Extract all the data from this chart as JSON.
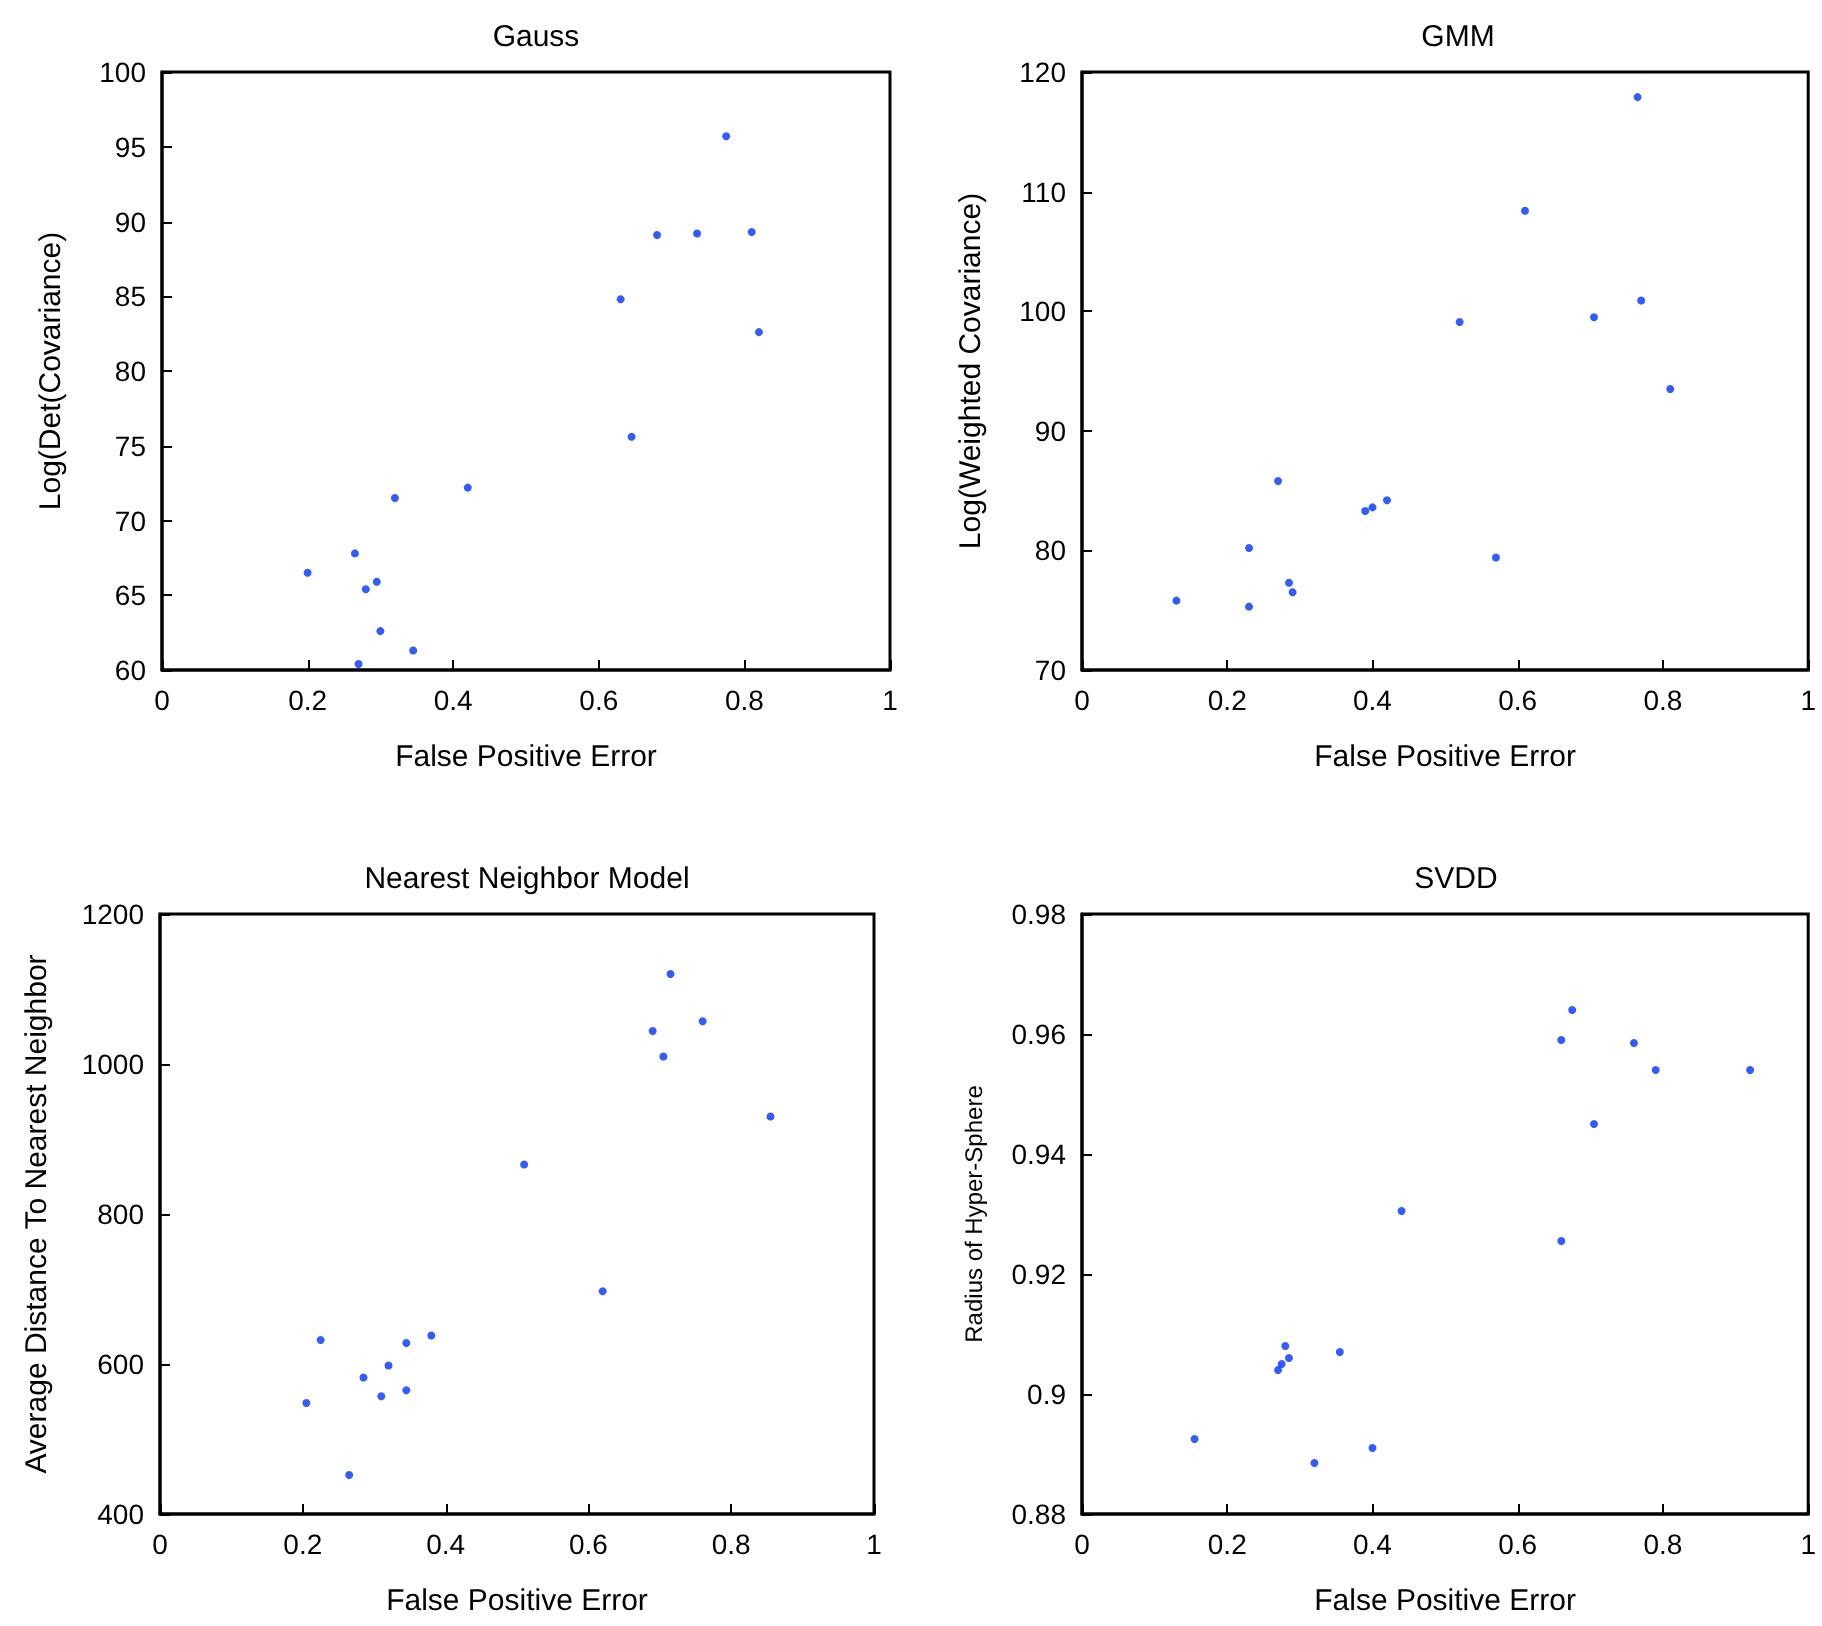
{
  "chart_data": [
    {
      "type": "scatter",
      "title": "Gauss",
      "xlabel": "False Positive Error",
      "ylabel": "Log(Det(Covariance)",
      "marker": "circle",
      "grid": false,
      "xlim": [
        0,
        1
      ],
      "xticks": [
        0,
        0.2,
        0.4,
        0.6,
        0.8,
        1
      ],
      "ylim": [
        60,
        100
      ],
      "yticks": [
        60,
        65,
        70,
        75,
        80,
        85,
        90,
        95,
        100
      ],
      "x": [
        0.2,
        0.265,
        0.28,
        0.295,
        0.3,
        0.27,
        0.345,
        0.32,
        0.42,
        0.63,
        0.645,
        0.68,
        0.735,
        0.81,
        0.775,
        0.82
      ],
      "series": [
        {
          "color": "#0033ff",
          "values": [
            66.5,
            67.8,
            65.4,
            65.9,
            62.6,
            60.4,
            61.3,
            71.5,
            72.2,
            84.8,
            75.6,
            89.1,
            89.2,
            89.3,
            95.7,
            82.6
          ]
        }
      ]
    },
    {
      "type": "scatter",
      "title": "GMM",
      "xlabel": "False Positive Error",
      "ylabel": "Log(Weighted Covariance)",
      "marker": "circle",
      "grid": false,
      "xlim": [
        0,
        1
      ],
      "xticks": [
        0,
        0.2,
        0.4,
        0.6,
        0.8,
        1
      ],
      "ylim": [
        70,
        120
      ],
      "yticks": [
        70,
        80,
        90,
        100,
        110,
        120
      ],
      "x": [
        0.13,
        0.23,
        0.23,
        0.27,
        0.285,
        0.29,
        0.39,
        0.4,
        0.42,
        0.52,
        0.57,
        0.61,
        0.705,
        0.77,
        0.765,
        0.81
      ],
      "series": [
        {
          "color": "#0033ff",
          "values": [
            75.8,
            75.3,
            80.2,
            85.8,
            77.3,
            76.5,
            83.3,
            83.6,
            84.2,
            99.1,
            79.4,
            108.4,
            99.5,
            100.9,
            117.9,
            93.5
          ]
        }
      ]
    },
    {
      "type": "scatter",
      "title": "Nearest Neighbor Model",
      "xlabel": "False Positive Error",
      "ylabel": "Average Distance To Nearest Neighbor",
      "marker": "circle",
      "grid": false,
      "xlim": [
        0,
        1
      ],
      "xticks": [
        0,
        0.2,
        0.4,
        0.6,
        0.8,
        1
      ],
      "ylim": [
        400,
        1200
      ],
      "yticks": [
        400,
        600,
        800,
        1000,
        1200
      ],
      "x": [
        0.205,
        0.225,
        0.265,
        0.285,
        0.31,
        0.32,
        0.345,
        0.345,
        0.38,
        0.51,
        0.62,
        0.69,
        0.705,
        0.715,
        0.76,
        0.855
      ],
      "series": [
        {
          "color": "#0033ff",
          "values": [
            548,
            632,
            452,
            582,
            557,
            598,
            565,
            628,
            638,
            866,
            697,
            1044,
            1010,
            1120,
            1057,
            930
          ]
        }
      ]
    },
    {
      "type": "scatter",
      "title": "SVDD",
      "xlabel": "False Positive Error",
      "ylabel": "Radius of Hyper-Sphere",
      "marker": "circle",
      "grid": false,
      "xlim": [
        0,
        1
      ],
      "xticks": [
        0,
        0.2,
        0.4,
        0.6,
        0.8,
        1
      ],
      "ylim": [
        0.88,
        0.98
      ],
      "yticks": [
        0.88,
        0.9,
        0.92,
        0.94,
        0.96,
        0.98
      ],
      "x": [
        0.155,
        0.27,
        0.275,
        0.28,
        0.285,
        0.32,
        0.355,
        0.4,
        0.44,
        0.66,
        0.66,
        0.675,
        0.705,
        0.76,
        0.79,
        0.92
      ],
      "series": [
        {
          "color": "#0033ff",
          "values": [
            0.8925,
            0.904,
            0.905,
            0.908,
            0.906,
            0.8885,
            0.907,
            0.891,
            0.9305,
            0.9255,
            0.959,
            0.964,
            0.945,
            0.9585,
            0.954,
            0.954
          ]
        }
      ]
    }
  ]
}
